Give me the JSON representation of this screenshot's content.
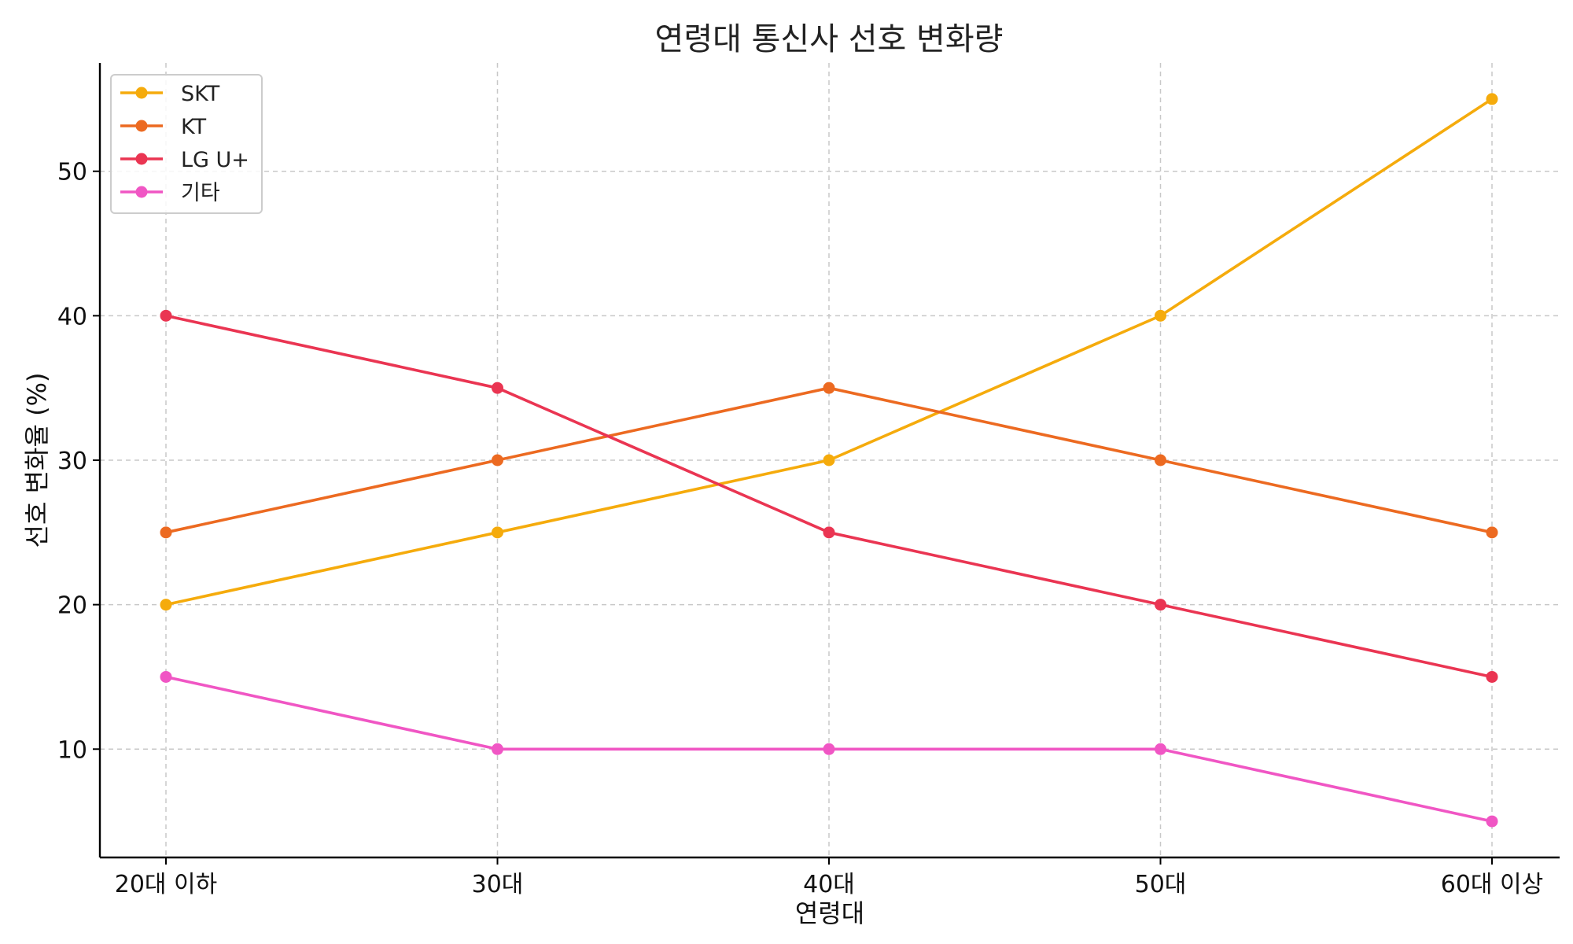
{
  "chart_data": {
    "type": "line",
    "title": "연령대 통신사 선호 변화량",
    "xlabel": "연령대",
    "ylabel": "선호 변화율 (%)",
    "categories": [
      "20대 이하",
      "30대",
      "40대",
      "50대",
      "60대 이상"
    ],
    "ylim": [
      2.5,
      57.5
    ],
    "yticks": [
      10,
      20,
      30,
      40,
      50
    ],
    "grid": true,
    "legend_position": "top-left",
    "series": [
      {
        "name": "SKT",
        "color": "#f5ab0c",
        "values": [
          20,
          25,
          30,
          40,
          55
        ]
      },
      {
        "name": "KT",
        "color": "#ec6a21",
        "values": [
          25,
          30,
          35,
          30,
          25
        ]
      },
      {
        "name": "LG U+",
        "color": "#ea3552",
        "values": [
          40,
          35,
          25,
          20,
          15
        ]
      },
      {
        "name": "기타",
        "color": "#f056c4",
        "values": [
          15,
          10,
          10,
          10,
          5
        ]
      }
    ]
  }
}
